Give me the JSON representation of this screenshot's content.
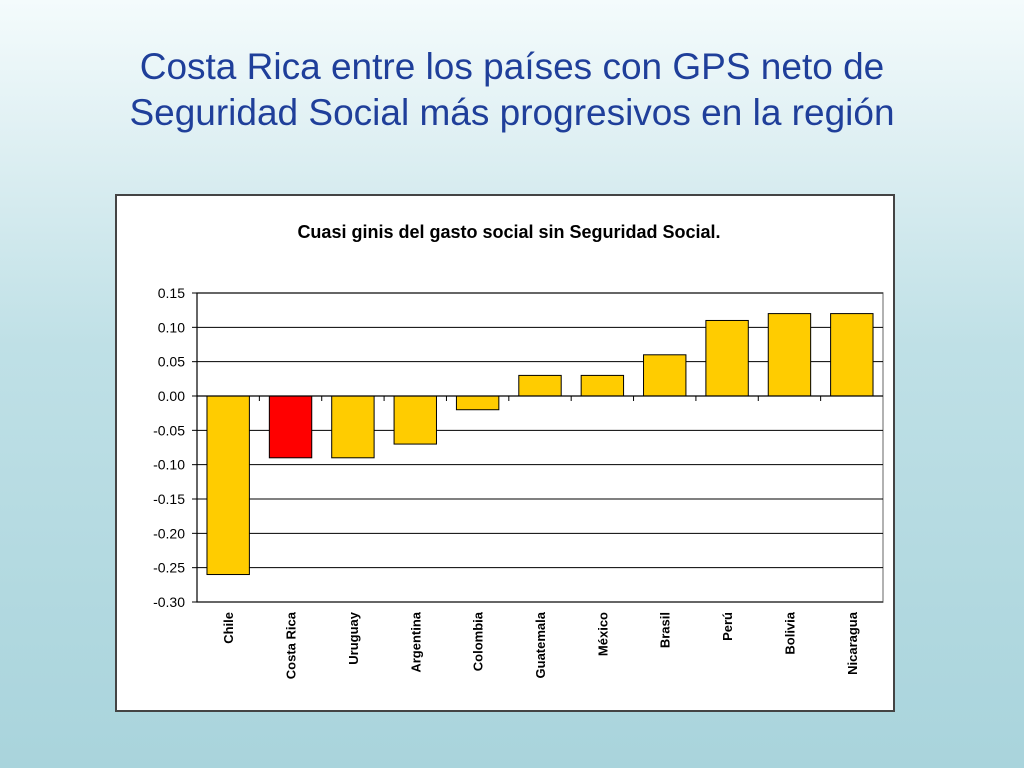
{
  "slide": {
    "title_line1": "Costa Rica entre los países con GPS neto de",
    "title_line2": "Seguridad Social más progresivos en la región"
  },
  "chart_data": {
    "type": "bar",
    "title": "Cuasi ginis del gasto social sin Seguridad Social.",
    "xlabel": "",
    "ylabel": "",
    "categories": [
      "Chile",
      "Costa Rica",
      "Uruguay",
      "Argentina",
      "Colombia",
      "Guatemala",
      "México",
      "Brasil",
      "Perú",
      "Bolivia",
      "Nicaragua"
    ],
    "values": [
      -0.26,
      -0.09,
      -0.09,
      -0.07,
      -0.02,
      0.03,
      0.03,
      0.06,
      0.11,
      0.12,
      0.12
    ],
    "ylim": [
      -0.3,
      0.15
    ],
    "yticks": [
      "0.15",
      "0.10",
      "0.05",
      "0.00",
      "-0.05",
      "-0.10",
      "-0.15",
      "-0.20",
      "-0.25",
      "-0.30"
    ],
    "grid": true,
    "legend": "none",
    "colors": {
      "default_bar": "#ffcc00",
      "highlight_bar": "#ff0000",
      "highlight_category": "Costa Rica",
      "bar_stroke": "#000000",
      "grid": "#000000"
    }
  }
}
